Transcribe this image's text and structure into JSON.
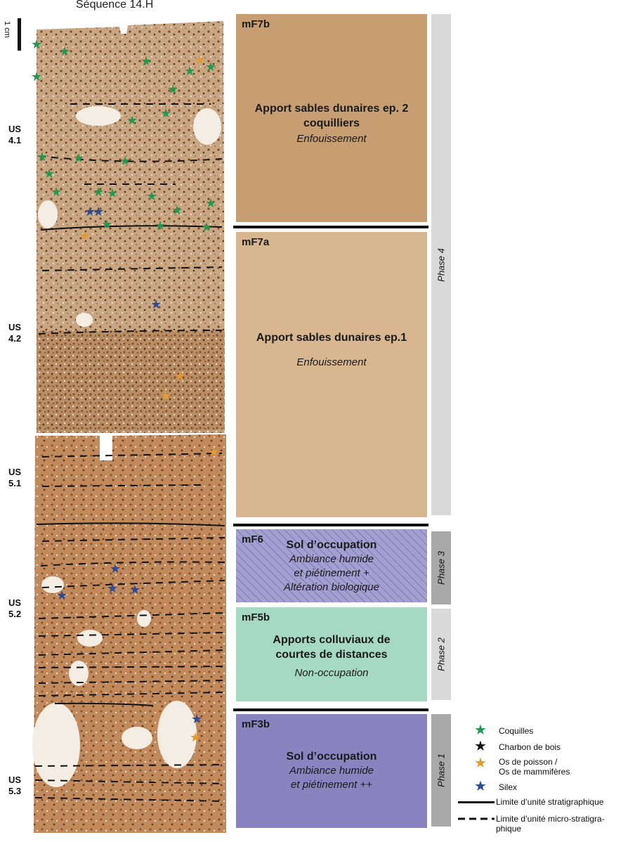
{
  "title": "Séquence 14.H",
  "scale": "1 cm",
  "us_labels": [
    {
      "line1": "US",
      "line2": "4.1"
    },
    {
      "line1": "US",
      "line2": "4.2"
    },
    {
      "line1": "US",
      "line2": "5.1"
    },
    {
      "line1": "US",
      "line2": "5.2"
    },
    {
      "line1": "US",
      "line2": "5.3"
    }
  ],
  "boxes": [
    {
      "code": "mF7b",
      "main": "Apport sables dunaires ep. 2 coquilliers",
      "sub": "Enfouissement",
      "color": "#c79d72"
    },
    {
      "code": "mF7a",
      "main": "Apport sables dunaires ep.1",
      "sub": "Enfouissement",
      "color": "#d8b690"
    },
    {
      "code": "mF6",
      "main": "Sol d’occupation",
      "sub1": "Ambiance humide",
      "sub2": "et piétinement +",
      "sub3": "Altération biologique",
      "color": "#a49fd1"
    },
    {
      "code": "mF5b",
      "main1": "Apports colluviaux de",
      "main2": "courtes de distances",
      "sub": "Non-occupation",
      "color": "#a6d8c6"
    },
    {
      "code": "mF3b",
      "main": "Sol d’occupation",
      "sub1": "Ambiance humide",
      "sub2": "et piétinement ++",
      "color": "#8a83bf"
    }
  ],
  "phases": [
    "Phase 4",
    "Phase 3",
    "Phase 2",
    "Phase 1"
  ],
  "legend": {
    "coquilles": "Coquilles",
    "charbon": "Charbon de bois",
    "os1": "Os de poisson /",
    "os2": "Os de mammifères",
    "silex": "Silex",
    "strati": "Limite d’unité stratigraphique",
    "micro1": "Limite d’unité micro-stratigra-",
    "micro2": "phique"
  },
  "colors": {
    "green_star": "#1f9a4f",
    "black_star": "#111111",
    "orange_star": "#e59a2b",
    "blue_star": "#2a4a9a"
  }
}
